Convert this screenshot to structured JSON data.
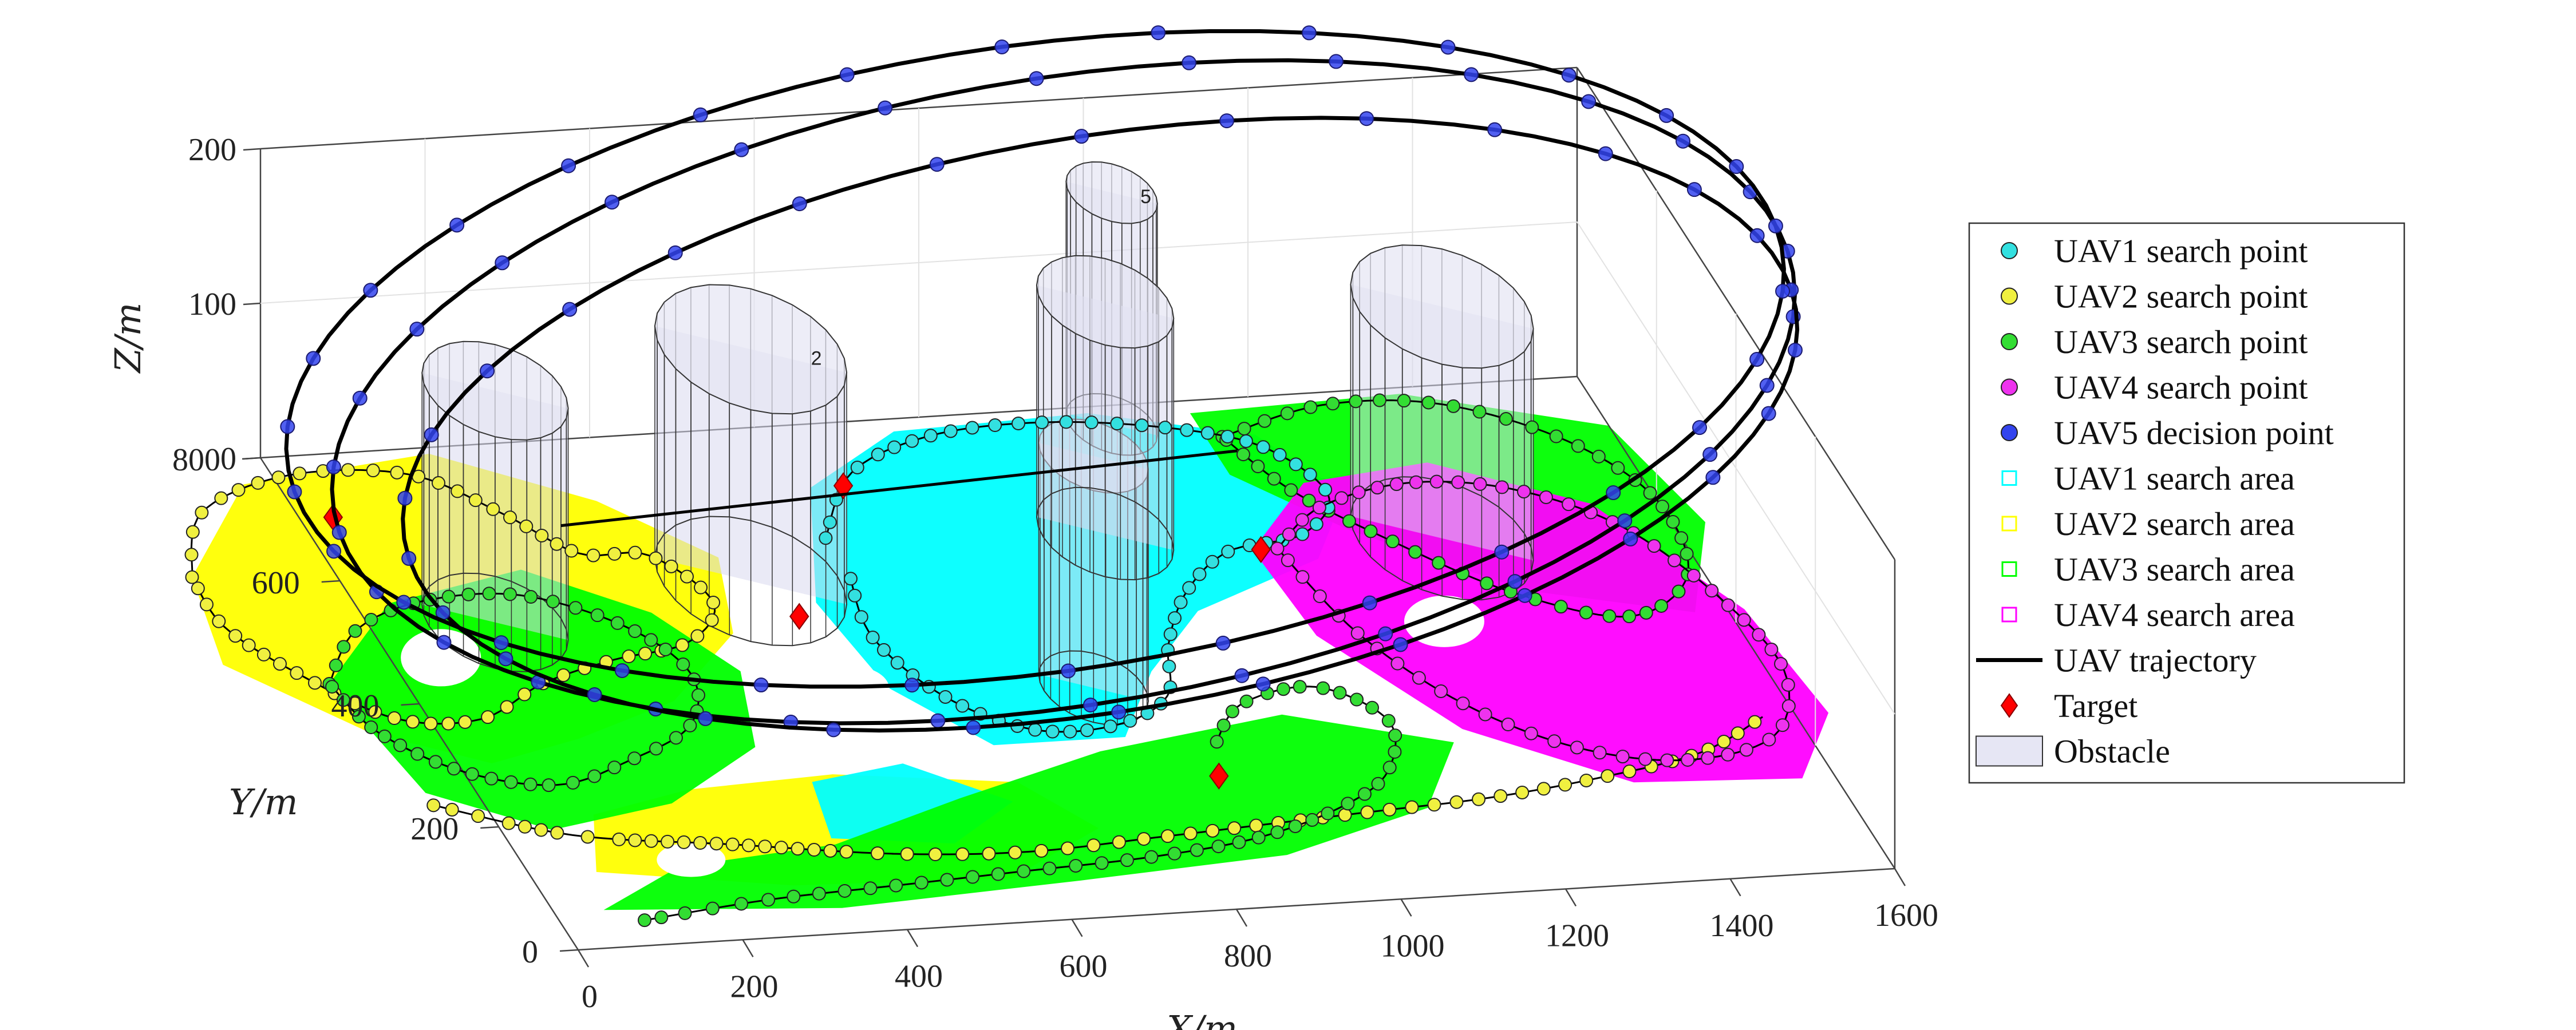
{
  "chart_data": {
    "type": "scatter",
    "view": "3d",
    "title": "",
    "xlabel": "X/m",
    "ylabel": "Y/m",
    "zlabel": "Z/m",
    "xlim": [
      0,
      1600
    ],
    "ylim": [
      0,
      800
    ],
    "zlim": [
      0,
      200
    ],
    "xticks": [
      "0",
      "200",
      "400",
      "600",
      "800",
      "1000",
      "1200",
      "1400",
      "1600"
    ],
    "yticks": [
      "0",
      "200",
      "400",
      "600",
      "800"
    ],
    "zticks": [
      "0",
      "100",
      "200"
    ],
    "grid": true,
    "legend_position": "right",
    "colors": {
      "uav1": "#33e0e0",
      "uav2": "#f0f040",
      "uav3": "#33dd33",
      "uav4": "#ee33ee",
      "uav5": "#3344ee",
      "trajectory": "#000000",
      "target": "#ff0000",
      "obstacle": "#d8d8ee",
      "area_cyan": "#00ffff",
      "area_yellow": "#ffff00",
      "area_green": "#00ff00",
      "area_magenta": "#ff00ff"
    },
    "legend": [
      {
        "label": "UAV1 search point",
        "kind": "circle",
        "color": "#33e0e0"
      },
      {
        "label": "UAV2 search point",
        "kind": "circle",
        "color": "#f0f040"
      },
      {
        "label": "UAV3 search point",
        "kind": "circle",
        "color": "#33dd33"
      },
      {
        "label": "UAV4 search point",
        "kind": "circle",
        "color": "#ee33ee"
      },
      {
        "label": "UAV5 decision point",
        "kind": "circle",
        "color": "#3344ee"
      },
      {
        "label": "UAV1 search area",
        "kind": "square",
        "color": "#00ffff"
      },
      {
        "label": "UAV2 search area",
        "kind": "square",
        "color": "#ffff00"
      },
      {
        "label": "UAV3 search area",
        "kind": "square",
        "color": "#00ff00"
      },
      {
        "label": "UAV4 search area",
        "kind": "square",
        "color": "#ff00ff"
      },
      {
        "label": "UAV trajectory",
        "kind": "line",
        "color": "#000000"
      },
      {
        "label": "Target",
        "kind": "diamond",
        "color": "#ff0000"
      },
      {
        "label": "Obstacle",
        "kind": "patch",
        "color": "#e6e6f4"
      }
    ],
    "obstacles": [
      {
        "label": "",
        "x": 150,
        "y": 520,
        "z": 150,
        "r": 80
      },
      {
        "label": "2",
        "x": 480,
        "y": 560,
        "z": 150,
        "r": 105
      },
      {
        "label": "",
        "x": 800,
        "y": 360,
        "z": 150,
        "r": 60
      },
      {
        "label": "5",
        "x": 1020,
        "y": 770,
        "z": 150,
        "r": 50
      },
      {
        "label": "",
        "x": 930,
        "y": 600,
        "z": 150,
        "r": 75
      },
      {
        "label": "",
        "x": 1320,
        "y": 560,
        "z": 150,
        "r": 100
      }
    ],
    "targets": [
      {
        "x": 40,
        "y": 700,
        "z": 0
      },
      {
        "x": 660,
        "y": 700,
        "z": 0
      },
      {
        "x": 510,
        "y": 500,
        "z": 0
      },
      {
        "x": 1100,
        "y": 560,
        "z": 0
      },
      {
        "x": 880,
        "y": 210,
        "z": 0
      }
    ],
    "search_areas": [
      {
        "series": "UAV2 search area",
        "color": "#ffff00",
        "points": [
          [
            -170,
            620
          ],
          [
            -40,
            760
          ],
          [
            200,
            790
          ],
          [
            360,
            700
          ],
          [
            460,
            600
          ],
          [
            420,
            480
          ],
          [
            300,
            380
          ],
          [
            160,
            330
          ],
          [
            40,
            300
          ],
          [
            -80,
            360
          ],
          [
            -200,
            480
          ]
        ]
      },
      {
        "series": "UAV2 search area",
        "color": "#ffff00",
        "points": [
          [
            80,
            120
          ],
          [
            300,
            80
          ],
          [
            560,
            70
          ],
          [
            700,
            140
          ],
          [
            640,
            220
          ],
          [
            430,
            250
          ],
          [
            250,
            240
          ],
          [
            120,
            210
          ]
        ]
      },
      {
        "series": "UAV1 search area",
        "color": "#00ffff",
        "points": [
          [
            540,
            520
          ],
          [
            620,
            700
          ],
          [
            760,
            780
          ],
          [
            1000,
            790
          ],
          [
            1180,
            740
          ],
          [
            1240,
            640
          ],
          [
            1160,
            540
          ],
          [
            980,
            470
          ],
          [
            880,
            380
          ],
          [
            800,
            280
          ],
          [
            640,
            280
          ],
          [
            560,
            380
          ]
        ]
      },
      {
        "series": "UAV1 search area",
        "color": "#00ffff",
        "points": [
          [
            380,
            150
          ],
          [
            520,
            130
          ],
          [
            620,
            190
          ],
          [
            520,
            260
          ],
          [
            400,
            240
          ]
        ]
      },
      {
        "series": "UAV3 search area",
        "color": "#00ff00",
        "points": [
          [
            -90,
            440
          ],
          [
            40,
            560
          ],
          [
            220,
            600
          ],
          [
            340,
            520
          ],
          [
            400,
            420
          ],
          [
            360,
            300
          ],
          [
            220,
            220
          ],
          [
            60,
            190
          ],
          [
            -60,
            260
          ]
        ]
      },
      {
        "series": "UAV3 search area",
        "color": "#00ff00",
        "points": [
          [
            60,
            60
          ],
          [
            340,
            40
          ],
          [
            640,
            60
          ],
          [
            900,
            80
          ],
          [
            1100,
            140
          ],
          [
            1180,
            240
          ],
          [
            1000,
            300
          ],
          [
            760,
            260
          ],
          [
            560,
            200
          ],
          [
            380,
            140
          ],
          [
            180,
            120
          ]
        ]
      },
      {
        "series": "UAV3 search area",
        "color": "#00ff00",
        "points": [
          [
            1120,
            780
          ],
          [
            1380,
            790
          ],
          [
            1600,
            720
          ],
          [
            1640,
            560
          ],
          [
            1560,
            420
          ],
          [
            1380,
            470
          ],
          [
            1220,
            580
          ],
          [
            1120,
            680
          ]
        ]
      },
      {
        "series": "UAV4 search area",
        "color": "#ff00ff",
        "points": [
          [
            1090,
            560
          ],
          [
            1200,
            660
          ],
          [
            1360,
            680
          ],
          [
            1520,
            600
          ],
          [
            1620,
            420
          ],
          [
            1640,
            250
          ],
          [
            1560,
            150
          ],
          [
            1360,
            160
          ],
          [
            1200,
            260
          ],
          [
            1100,
            420
          ]
        ]
      }
    ],
    "search_paths": [
      {
        "series": "UAV2 search point",
        "color": "#f0f040",
        "points": [
          [
            -170,
            620
          ],
          [
            -110,
            720
          ],
          [
            20,
            770
          ],
          [
            160,
            760
          ],
          [
            240,
            690
          ],
          [
            300,
            620
          ],
          [
            380,
            610
          ],
          [
            420,
            530
          ],
          [
            360,
            470
          ],
          [
            260,
            450
          ],
          [
            160,
            420
          ],
          [
            60,
            370
          ],
          [
            -40,
            380
          ],
          [
            -120,
            460
          ],
          [
            -170,
            540
          ],
          [
            -170,
            620
          ]
        ]
      },
      {
        "series": "UAV2 search point",
        "color": "#f0f040",
        "points": [
          [
            -60,
            240
          ],
          [
            80,
            180
          ],
          [
            260,
            150
          ],
          [
            440,
            120
          ],
          [
            600,
            110
          ],
          [
            760,
            120
          ],
          [
            900,
            130
          ],
          [
            1040,
            140
          ],
          [
            1180,
            150
          ],
          [
            1320,
            170
          ],
          [
            1460,
            200
          ],
          [
            1560,
            250
          ]
        ]
      },
      {
        "series": "UAV3 search point",
        "color": "#33dd33",
        "points": [
          [
            -90,
            440
          ],
          [
            -20,
            520
          ],
          [
            80,
            560
          ],
          [
            200,
            560
          ],
          [
            300,
            500
          ],
          [
            340,
            420
          ],
          [
            300,
            340
          ],
          [
            200,
            290
          ],
          [
            100,
            260
          ],
          [
            0,
            290
          ],
          [
            -70,
            360
          ],
          [
            -90,
            440
          ]
        ]
      },
      {
        "series": "UAV3 search point",
        "color": "#33dd33",
        "points": [
          [
            100,
            40
          ],
          [
            260,
            60
          ],
          [
            420,
            70
          ],
          [
            580,
            80
          ],
          [
            740,
            90
          ],
          [
            880,
            110
          ],
          [
            1000,
            150
          ],
          [
            1080,
            200
          ],
          [
            1120,
            280
          ],
          [
            1060,
            340
          ],
          [
            960,
            320
          ],
          [
            900,
            260
          ]
        ]
      },
      {
        "series": "UAV3 search point",
        "color": "#33dd33",
        "points": [
          [
            1140,
            740
          ],
          [
            1280,
            780
          ],
          [
            1420,
            770
          ],
          [
            1540,
            700
          ],
          [
            1600,
            600
          ],
          [
            1580,
            480
          ],
          [
            1480,
            420
          ],
          [
            1360,
            470
          ],
          [
            1260,
            560
          ],
          [
            1180,
            650
          ],
          [
            1140,
            740
          ]
        ]
      },
      {
        "series": "UAV1 search point",
        "color": "#33e0e0",
        "points": [
          [
            600,
            620
          ],
          [
            680,
            720
          ],
          [
            800,
            770
          ],
          [
            940,
            780
          ],
          [
            1080,
            760
          ],
          [
            1180,
            720
          ],
          [
            1220,
            640
          ],
          [
            1160,
            580
          ],
          [
            1060,
            560
          ],
          [
            980,
            500
          ],
          [
            920,
            420
          ],
          [
            880,
            340
          ],
          [
            800,
            300
          ],
          [
            700,
            300
          ],
          [
            620,
            360
          ],
          [
            580,
            460
          ],
          [
            600,
            560
          ]
        ]
      },
      {
        "series": "UAV4 search point",
        "color": "#ee33ee",
        "points": [
          [
            1120,
            560
          ],
          [
            1200,
            620
          ],
          [
            1320,
            650
          ],
          [
            1440,
            630
          ],
          [
            1540,
            560
          ],
          [
            1600,
            440
          ],
          [
            1620,
            320
          ],
          [
            1560,
            220
          ],
          [
            1440,
            190
          ],
          [
            1320,
            220
          ],
          [
            1220,
            300
          ],
          [
            1150,
            420
          ],
          [
            1120,
            560
          ]
        ]
      }
    ],
    "trajectory_loops": [
      {
        "series": "UAV5 decision point",
        "color": "#3344ee",
        "cx": 860,
        "cy": 560,
        "cz": 110,
        "rx": 880,
        "ry": 260,
        "rz": 110
      },
      {
        "series": "UAV5 decision point",
        "color": "#3344ee",
        "cx": 890,
        "cy": 530,
        "cz": 100,
        "rx": 840,
        "ry": 230,
        "rz": 105
      },
      {
        "series": "UAV5 decision point",
        "color": "#3344ee",
        "cx": 840,
        "cy": 590,
        "cz": 120,
        "rx": 900,
        "ry": 280,
        "rz": 100
      }
    ]
  }
}
